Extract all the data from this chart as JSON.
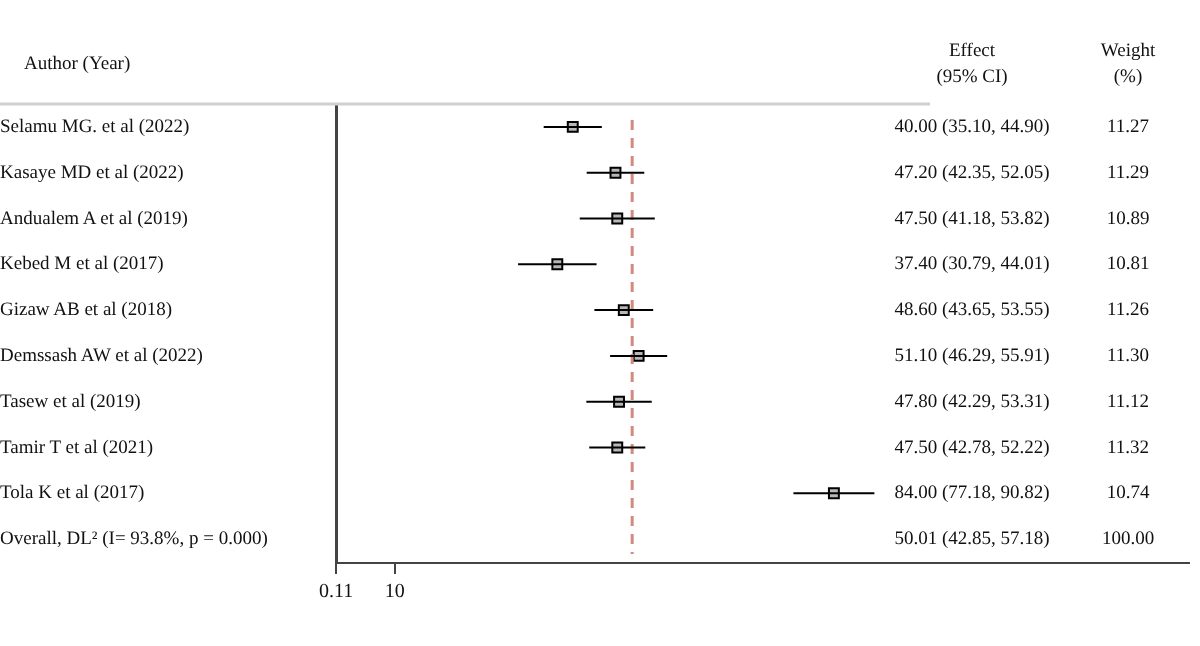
{
  "chart_data": {
    "type": "scatter",
    "orientation": "horizontal",
    "ylabel": "Author (Year)",
    "categories": [
      "Selamu MG. et al (2022)",
      "Kasaye MD et al (2022)",
      "Andualem A et al (2019)",
      "Kebed M et al (2017)",
      "Gizaw AB et al (2018)",
      "Demssash AW et al (2022)",
      "Tasew et al (2019)",
      "Tamir T et al (2021)",
      "Tola K et al (2017)",
      "Overall, DL² (I= 93.8%, p = 0.000)"
    ],
    "series": [
      {
        "color": "#000000",
        "values": [
          40.0,
          47.2,
          47.5,
          37.4,
          48.6,
          51.1,
          47.8,
          47.5,
          84.0,
          null
        ],
        "errors": [
          [
            35.1,
            44.9
          ],
          [
            42.35,
            52.05
          ],
          [
            41.18,
            53.82
          ],
          [
            30.79,
            44.01
          ],
          [
            43.65,
            53.55
          ],
          [
            46.29,
            55.91
          ],
          [
            42.29,
            53.31
          ],
          [
            42.78,
            52.22
          ],
          [
            77.18,
            90.82
          ],
          null
        ]
      }
    ],
    "xlim": [
      0.11,
      144
    ],
    "xticks": [
      0.11,
      10
    ],
    "grid": false,
    "legend": false,
    "marker": "square",
    "ref_lines": [
      {
        "axis": "x",
        "value": 50.01,
        "color": "#d08a80",
        "line_style": "dashed"
      }
    ],
    "annotations": [
      "Effect (95% CI)",
      "Weight (%)",
      "40.00 (35.10, 44.90)",
      "47.20 (42.35, 52.05)",
      "47.50 (41.18, 53.82)",
      "37.40 (30.79, 44.01)",
      "48.60 (43.65, 53.55)",
      "51.10 (46.29, 55.91)",
      "47.80 (42.29, 53.31)",
      "47.50 (42.78, 52.22)",
      "84.00 (77.18, 90.82)",
      "50.01 (42.85, 57.18)",
      "11.27",
      "11.29",
      "10.89",
      "10.81",
      "11.26",
      "11.30",
      "11.12",
      "11.32",
      "10.74",
      "100.00"
    ]
  }
}
